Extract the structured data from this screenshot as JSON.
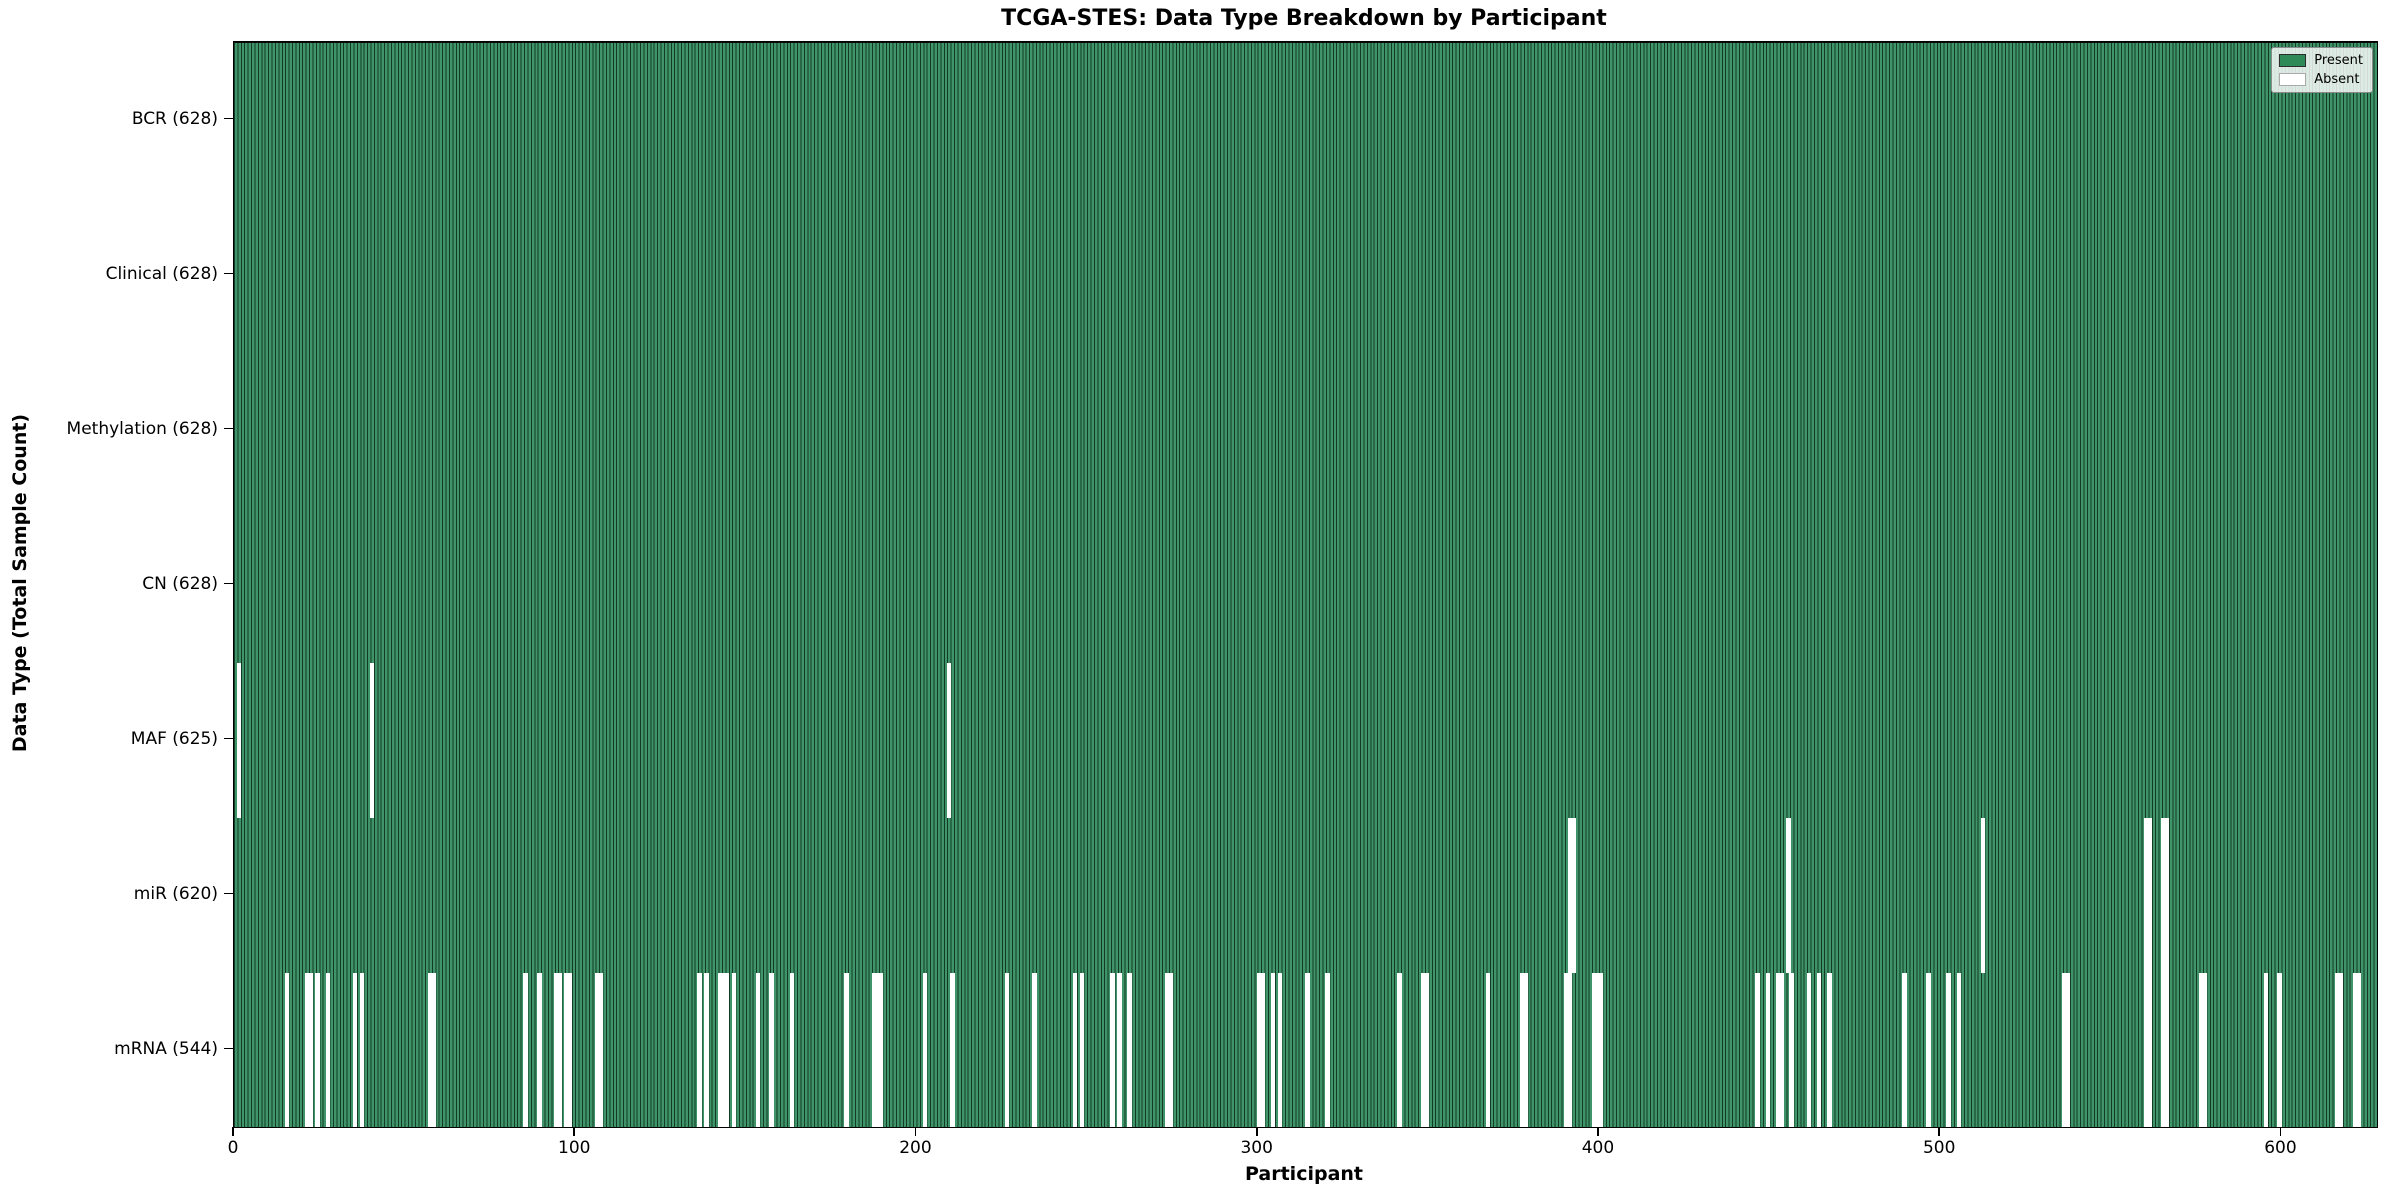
{
  "chart_data": {
    "type": "heatmap",
    "title": "TCGA-STES: Data Type Breakdown by Participant",
    "xlabel": "Participant",
    "ylabel": "Data Type (Total Sample Count)",
    "x_ticks": [
      0,
      100,
      200,
      300,
      400,
      500,
      600
    ],
    "x_range": [
      0,
      628
    ],
    "n_participants": 628,
    "grid": false,
    "legend_position": "upper right",
    "legend": {
      "entries": [
        {
          "label": "Present",
          "color": "#2E8B57"
        },
        {
          "label": "Absent",
          "color": "#FFFFFF"
        }
      ]
    },
    "colors": {
      "present_fill": "#3F9569",
      "bar_edge": "#123A24",
      "absent": "#FFFFFF"
    },
    "rows": [
      {
        "label": "BCR",
        "count": 628,
        "display": "BCR (628)",
        "absent_participants": []
      },
      {
        "label": "Clinical",
        "count": 628,
        "display": "Clinical (628)",
        "absent_participants": []
      },
      {
        "label": "Methylation",
        "count": 628,
        "display": "Methylation (628)",
        "absent_participants": []
      },
      {
        "label": "CN",
        "count": 628,
        "display": "CN (628)",
        "absent_participants": []
      },
      {
        "label": "MAF",
        "count": 625,
        "display": "MAF (625)",
        "absent_participants": [
          1,
          40,
          209
        ]
      },
      {
        "label": "miR",
        "count": 620,
        "display": "miR (620)",
        "absent_participants": [
          391,
          392,
          455,
          512,
          560,
          561,
          565,
          566
        ]
      },
      {
        "label": "mRNA",
        "count": 544,
        "display": "mRNA (544)",
        "absent_participants": [
          15,
          21,
          22,
          24,
          27,
          35,
          37,
          57,
          58,
          85,
          89,
          94,
          95,
          97,
          98,
          106,
          107,
          136,
          138,
          142,
          143,
          144,
          146,
          153,
          157,
          163,
          179,
          187,
          188,
          189,
          202,
          210,
          226,
          234,
          246,
          248,
          257,
          259,
          262,
          273,
          274,
          300,
          301,
          304,
          306,
          314,
          320,
          341,
          348,
          349,
          367,
          377,
          378,
          390,
          391,
          398,
          399,
          400,
          446,
          449,
          452,
          453,
          456,
          461,
          464,
          467,
          489,
          496,
          502,
          505,
          536,
          537,
          560,
          561,
          565,
          566,
          576,
          577,
          595,
          599,
          616,
          617,
          621,
          622
        ]
      }
    ]
  }
}
